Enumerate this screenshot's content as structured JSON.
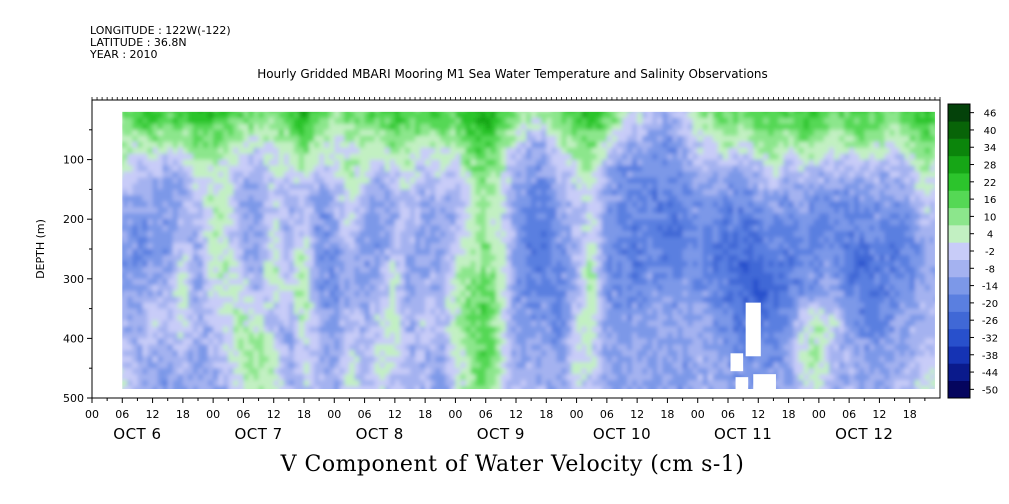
{
  "header": {
    "longitude": "LONGITUDE : 122W(-122)",
    "latitude": "LATITUDE : 36.8N",
    "year": "YEAR : 2010"
  },
  "title": "Hourly Gridded MBARI Mooring M1 Sea Water Temperature and Salinity Observations",
  "variable_label": "V Component of Water Velocity (cm s-1)",
  "chart_data": {
    "type": "heatmap",
    "title": "Hourly Gridded MBARI Mooring M1 Sea Water Temperature and Salinity Observations",
    "xlabel": "",
    "ylabel": "DEPTH (m)",
    "colorbar_label": "V Component of Water Velocity (cm s-1)",
    "x_units": "hours since 2010-10-06 00:00",
    "x_range": [
      0,
      168
    ],
    "ylim": [
      500,
      0
    ],
    "y_ticks": [
      100,
      200,
      300,
      400,
      500
    ],
    "x_hour_ticks": [
      "00",
      "06",
      "12",
      "18",
      "00",
      "06",
      "12",
      "18",
      "00",
      "06",
      "12",
      "18",
      "00",
      "06",
      "12",
      "18",
      "00",
      "06",
      "12",
      "18",
      "00",
      "06",
      "12",
      "18",
      "00",
      "06",
      "12",
      "18"
    ],
    "x_day_labels": [
      "OCT 6",
      "OCT 7",
      "OCT 8",
      "OCT 9",
      "OCT 10",
      "OCT 11",
      "OCT 12"
    ],
    "data_extent": {
      "hour_start": 6,
      "hour_end": 167,
      "depth_top": 20,
      "depth_bottom": 485
    },
    "color_levels": [
      -50,
      -44,
      -38,
      -32,
      -26,
      -20,
      -14,
      -8,
      -2,
      4,
      10,
      16,
      22,
      28,
      34,
      40,
      46
    ],
    "colorbar_ticks": [
      "46",
      "40",
      "34",
      "28",
      "22",
      "16",
      "10",
      "4",
      "-2",
      "-8",
      "-14",
      "-20",
      "-26",
      "-32",
      "-38",
      "-44",
      "-50"
    ],
    "colors": [
      "#05055e",
      "#0a1a8c",
      "#1533b4",
      "#2850cc",
      "#4068d6",
      "#5a7fe0",
      "#7c98e8",
      "#a4b2f0",
      "#c8ccf8",
      "#c2f0c2",
      "#8ce68c",
      "#55d855",
      "#2cc42c",
      "#16a616",
      "#0b850b",
      "#086408",
      "#04420a"
    ],
    "profiles": [
      {
        "hour": 6,
        "v": [
          15,
          10,
          6,
          -6,
          -10,
          -12,
          -8,
          -4,
          2,
          6
        ]
      },
      {
        "hour": 9,
        "v": [
          22,
          8,
          -4,
          -10,
          -12,
          -14,
          -10,
          -8,
          -6,
          -4
        ]
      },
      {
        "hour": 12,
        "v": [
          25,
          12,
          -2,
          -8,
          -10,
          -8,
          -4,
          2,
          -6,
          -8
        ]
      },
      {
        "hour": 15,
        "v": [
          20,
          6,
          -8,
          -10,
          -12,
          -10,
          -6,
          -4,
          -8,
          -10
        ]
      },
      {
        "hour": 18,
        "v": [
          22,
          8,
          -6,
          -6,
          -2,
          4,
          8,
          6,
          -4,
          -8
        ]
      },
      {
        "hour": 21,
        "v": [
          26,
          14,
          4,
          -4,
          -6,
          -10,
          -8,
          -6,
          -8,
          -10
        ]
      },
      {
        "hour": 24,
        "v": [
          24,
          12,
          6,
          8,
          10,
          6,
          2,
          -4,
          -6,
          -8
        ]
      },
      {
        "hour": 27,
        "v": [
          22,
          10,
          6,
          4,
          2,
          8,
          6,
          4,
          2,
          -4
        ]
      },
      {
        "hour": 30,
        "v": [
          18,
          4,
          -4,
          -8,
          -6,
          -4,
          4,
          8,
          10,
          6
        ]
      },
      {
        "hour": 33,
        "v": [
          16,
          2,
          -6,
          -10,
          -12,
          -8,
          -4,
          6,
          12,
          8
        ]
      },
      {
        "hour": 36,
        "v": [
          14,
          6,
          4,
          2,
          6,
          10,
          4,
          -4,
          6,
          8
        ]
      },
      {
        "hour": 39,
        "v": [
          22,
          10,
          0,
          -6,
          -8,
          -4,
          2,
          -6,
          -8,
          -6
        ]
      },
      {
        "hour": 42,
        "v": [
          28,
          16,
          4,
          -2,
          4,
          10,
          12,
          8,
          4,
          2
        ]
      },
      {
        "hour": 45,
        "v": [
          20,
          8,
          -2,
          -10,
          -12,
          -14,
          -10,
          -6,
          -8,
          -4
        ]
      },
      {
        "hour": 48,
        "v": [
          12,
          4,
          0,
          -6,
          -10,
          -12,
          -14,
          -10,
          -6,
          -8
        ]
      },
      {
        "hour": 51,
        "v": [
          14,
          6,
          8,
          6,
          2,
          -4,
          -6,
          -2,
          4,
          6
        ]
      },
      {
        "hour": 54,
        "v": [
          16,
          10,
          4,
          -4,
          -8,
          -10,
          -8,
          -6,
          -4,
          -6
        ]
      },
      {
        "hour": 57,
        "v": [
          20,
          6,
          -6,
          -10,
          -12,
          -8,
          -4,
          2,
          6,
          4
        ]
      },
      {
        "hour": 60,
        "v": [
          24,
          14,
          2,
          -6,
          -4,
          2,
          6,
          8,
          4,
          -2
        ]
      },
      {
        "hour": 63,
        "v": [
          18,
          8,
          4,
          2,
          -4,
          -8,
          -10,
          -6,
          -4,
          -6
        ]
      },
      {
        "hour": 66,
        "v": [
          20,
          6,
          -4,
          -8,
          -10,
          -6,
          -2,
          2,
          -4,
          -6
        ]
      },
      {
        "hour": 69,
        "v": [
          22,
          10,
          0,
          -6,
          -8,
          -10,
          -6,
          -4,
          -8,
          -10
        ]
      },
      {
        "hour": 72,
        "v": [
          18,
          6,
          -2,
          -6,
          -4,
          4,
          8,
          6,
          4,
          2
        ]
      },
      {
        "hour": 75,
        "v": [
          26,
          18,
          10,
          6,
          8,
          10,
          14,
          16,
          12,
          10
        ]
      },
      {
        "hour": 78,
        "v": [
          30,
          22,
          14,
          10,
          12,
          14,
          18,
          20,
          22,
          18
        ]
      },
      {
        "hour": 81,
        "v": [
          22,
          14,
          6,
          2,
          4,
          8,
          10,
          8,
          6,
          4
        ]
      },
      {
        "hour": 84,
        "v": [
          14,
          4,
          -6,
          -10,
          -8,
          -10,
          -12,
          -10,
          -8,
          -6
        ]
      },
      {
        "hour": 87,
        "v": [
          10,
          -4,
          -10,
          -14,
          -16,
          -18,
          -14,
          -10,
          -6,
          -4
        ]
      },
      {
        "hour": 90,
        "v": [
          8,
          -6,
          -12,
          -16,
          -18,
          -16,
          -12,
          -10,
          -8,
          -6
        ]
      },
      {
        "hour": 93,
        "v": [
          18,
          6,
          -2,
          -8,
          -10,
          -12,
          -16,
          -18,
          -12,
          -8
        ]
      },
      {
        "hour": 96,
        "v": [
          22,
          10,
          4,
          0,
          -4,
          -6,
          -4,
          4,
          6,
          2
        ]
      },
      {
        "hour": 99,
        "v": [
          26,
          16,
          8,
          4,
          6,
          10,
          12,
          8,
          4,
          2
        ]
      },
      {
        "hour": 102,
        "v": [
          20,
          6,
          -6,
          -10,
          -12,
          -14,
          -12,
          -10,
          -8,
          -6
        ]
      },
      {
        "hour": 105,
        "v": [
          10,
          -6,
          -12,
          -14,
          -16,
          -14,
          -12,
          -10,
          -8,
          -10
        ]
      },
      {
        "hour": 108,
        "v": [
          4,
          -8,
          -12,
          -14,
          -16,
          -18,
          -14,
          -10,
          -8,
          -6
        ]
      },
      {
        "hour": 111,
        "v": [
          -4,
          -10,
          -14,
          -16,
          -14,
          -12,
          -10,
          -8,
          -10,
          -12
        ]
      },
      {
        "hour": 114,
        "v": [
          -6,
          -12,
          -14,
          -18,
          -20,
          -16,
          -12,
          -10,
          -8,
          -6
        ]
      },
      {
        "hour": 117,
        "v": [
          -2,
          -8,
          -12,
          -14,
          -16,
          -14,
          -10,
          -8,
          -10,
          -12
        ]
      },
      {
        "hour": 120,
        "v": [
          10,
          2,
          -8,
          -12,
          -14,
          -12,
          -10,
          -8,
          -6,
          -4
        ]
      },
      {
        "hour": 123,
        "v": [
          14,
          4,
          -6,
          -12,
          -16,
          -18,
          -14,
          -10,
          -8,
          -6
        ]
      },
      {
        "hour": 126,
        "v": [
          18,
          8,
          -6,
          -14,
          -18,
          -20,
          -18,
          -14,
          -10,
          -8
        ]
      },
      {
        "hour": 129,
        "v": [
          14,
          2,
          -10,
          -16,
          -20,
          -24,
          -22,
          -18,
          -14,
          -10
        ]
      },
      {
        "hour": 132,
        "v": [
          20,
          10,
          -4,
          -12,
          -18,
          -22,
          -26,
          -20,
          -14,
          -10
        ]
      },
      {
        "hour": 135,
        "v": [
          22,
          14,
          2,
          -8,
          -14,
          -18,
          -20,
          -16,
          -12,
          -8
        ]
      },
      {
        "hour": 138,
        "v": [
          18,
          8,
          -6,
          -12,
          -16,
          -20,
          -18,
          -14,
          -10,
          -8
        ]
      },
      {
        "hour": 141,
        "v": [
          26,
          14,
          0,
          -10,
          -12,
          -14,
          -10,
          4,
          8,
          2
        ]
      },
      {
        "hour": 144,
        "v": [
          22,
          10,
          -4,
          -12,
          -16,
          -14,
          -8,
          6,
          10,
          6
        ]
      },
      {
        "hour": 147,
        "v": [
          16,
          6,
          -6,
          -12,
          -14,
          -10,
          -4,
          2,
          -4,
          -8
        ]
      },
      {
        "hour": 150,
        "v": [
          20,
          8,
          -6,
          -14,
          -18,
          -20,
          -16,
          -10,
          -6,
          -4
        ]
      },
      {
        "hour": 153,
        "v": [
          22,
          10,
          -4,
          -12,
          -16,
          -22,
          -20,
          -14,
          -10,
          -8
        ]
      },
      {
        "hour": 156,
        "v": [
          18,
          8,
          -4,
          -10,
          -14,
          -16,
          -18,
          -14,
          -10,
          -6
        ]
      },
      {
        "hour": 159,
        "v": [
          14,
          4,
          -6,
          -12,
          -16,
          -18,
          -14,
          -10,
          -8,
          -6
        ]
      },
      {
        "hour": 162,
        "v": [
          20,
          10,
          -2,
          -10,
          -14,
          -16,
          -12,
          -8,
          -6,
          -4
        ]
      },
      {
        "hour": 165,
        "v": [
          26,
          16,
          8,
          2,
          -4,
          -8,
          -6,
          -4,
          -2,
          4
        ]
      },
      {
        "hour": 167,
        "v": [
          22,
          12,
          4,
          -2,
          -6,
          -8,
          -6,
          -2,
          2,
          4
        ]
      }
    ],
    "profile_depths": [
      25,
      75,
      125,
      175,
      225,
      275,
      325,
      375,
      425,
      475
    ],
    "missing_regions": [
      {
        "hour_start": 129.5,
        "hour_end": 132.5,
        "depth_top": 340,
        "depth_bottom": 430
      },
      {
        "hour_start": 131.0,
        "hour_end": 135.5,
        "depth_top": 460,
        "depth_bottom": 485
      },
      {
        "hour_start": 126.5,
        "hour_end": 129.0,
        "depth_top": 425,
        "depth_bottom": 455
      },
      {
        "hour_start": 127.5,
        "hour_end": 130.0,
        "depth_top": 465,
        "depth_bottom": 485
      }
    ]
  }
}
